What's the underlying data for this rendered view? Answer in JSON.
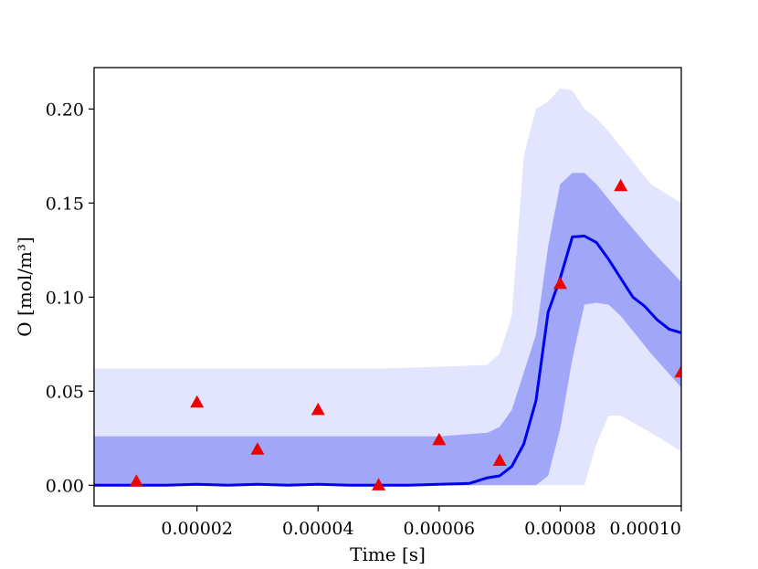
{
  "chart_data": {
    "type": "line",
    "title": "",
    "xlabel": "Time [s]",
    "ylabel": "O [mol/m³]",
    "xlim": [
      3e-06,
      0.0001
    ],
    "ylim": [
      -0.011,
      0.222
    ],
    "xticks": [
      2e-05,
      4e-05,
      6e-05,
      8e-05,
      0.0001
    ],
    "xtick_labels": [
      "0.00002",
      "0.00004",
      "0.00006",
      "0.00008",
      "0.00010"
    ],
    "yticks": [
      0.0,
      0.05,
      0.1,
      0.15,
      0.2
    ],
    "ytick_labels": [
      "0.00",
      "0.05",
      "0.10",
      "0.15",
      "0.20"
    ],
    "grid": false,
    "colors": {
      "mean_line": "#0000ee",
      "inner_band": "#a0a6f8",
      "outer_band": "#e3e4fd",
      "measurements": "#ee0000"
    },
    "mean": {
      "x": [
        3e-06,
        5e-06,
        1e-05,
        1.5e-05,
        2e-05,
        2.5e-05,
        3e-05,
        3.5e-05,
        4e-05,
        4.5e-05,
        5e-05,
        5.5e-05,
        6e-05,
        6.5e-05,
        6.8e-05,
        7e-05,
        7.2e-05,
        7.4e-05,
        7.6e-05,
        7.8e-05,
        8e-05,
        8.2e-05,
        8.4e-05,
        8.6e-05,
        8.8e-05,
        9e-05,
        9.2e-05,
        9.4e-05,
        9.6e-05,
        9.8e-05,
        0.0001
      ],
      "y": [
        0.0,
        0.0,
        0.0,
        0.0,
        0.0005,
        0.0,
        0.0005,
        0.0,
        0.0005,
        0.0,
        0.0,
        0.0,
        0.0005,
        0.001,
        0.004,
        0.005,
        0.01,
        0.022,
        0.045,
        0.092,
        0.11,
        0.132,
        0.1325,
        0.129,
        0.12,
        0.11,
        0.1,
        0.095,
        0.088,
        0.083,
        0.081
      ]
    },
    "inner_band": {
      "x": [
        3e-06,
        2e-05,
        3e-05,
        4e-05,
        5e-05,
        6e-05,
        6.8e-05,
        7e-05,
        7.2e-05,
        7.4e-05,
        7.6e-05,
        7.8e-05,
        8e-05,
        8.2e-05,
        8.4e-05,
        8.6e-05,
        8.8e-05,
        9e-05,
        9.5e-05,
        0.0001
      ],
      "lower": [
        0.0,
        0.0,
        0.0,
        0.0,
        0.0,
        0.0,
        0.0,
        0.0,
        0.0,
        0.0,
        0.0,
        0.005,
        0.03,
        0.067,
        0.096,
        0.097,
        0.096,
        0.09,
        0.07,
        0.052
      ],
      "upper": [
        0.026,
        0.026,
        0.026,
        0.026,
        0.026,
        0.026,
        0.028,
        0.031,
        0.04,
        0.06,
        0.08,
        0.127,
        0.16,
        0.166,
        0.166,
        0.16,
        0.152,
        0.144,
        0.125,
        0.108
      ]
    },
    "outer_band": {
      "x": [
        3e-06,
        1e-05,
        2e-05,
        3e-05,
        4e-05,
        5e-05,
        6e-05,
        6.8e-05,
        7e-05,
        7.2e-05,
        7.4e-05,
        7.6e-05,
        7.8e-05,
        8e-05,
        8.2e-05,
        8.4e-05,
        8.6e-05,
        8.8e-05,
        9e-05,
        9.5e-05,
        0.0001
      ],
      "lower": [
        0.0,
        0.0,
        0.0,
        0.0,
        0.0,
        0.0,
        0.0,
        0.0,
        0.0,
        0.0,
        0.0,
        0.0,
        0.0,
        0.0,
        0.0,
        0.0,
        0.022,
        0.037,
        0.037,
        0.028,
        0.018
      ],
      "upper": [
        0.062,
        0.062,
        0.062,
        0.062,
        0.062,
        0.062,
        0.063,
        0.064,
        0.07,
        0.09,
        0.175,
        0.2,
        0.204,
        0.211,
        0.21,
        0.2,
        0.195,
        0.188,
        0.18,
        0.16,
        0.15
      ]
    },
    "measurements": {
      "marker": "triangle",
      "x": [
        1e-05,
        2e-05,
        3e-05,
        4e-05,
        5e-05,
        6e-05,
        7e-05,
        8e-05,
        9e-05,
        0.0001
      ],
      "y": [
        0.002,
        0.044,
        0.019,
        0.04,
        0.0,
        0.024,
        0.013,
        0.107,
        0.159,
        0.06
      ]
    }
  }
}
